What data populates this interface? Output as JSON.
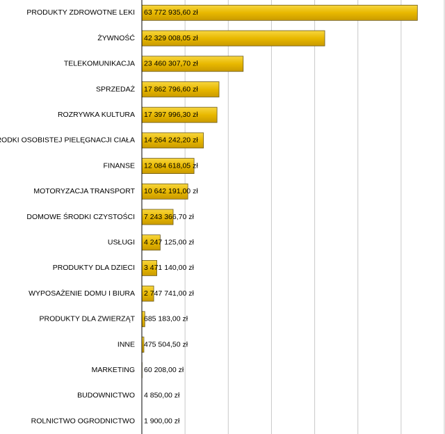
{
  "chart_data": {
    "type": "hbar",
    "categories": [
      "PRODUKTY ZDROWOTNE LEKI",
      "ŻYWNOŚĆ",
      "TELEKOMUNIKACJA",
      "SPRZEDAŻ",
      "ROZRYWKA KULTURA",
      "ŚRODKI OSOBISTEJ PIELĘGNACJI CIAŁA",
      "FINANSE",
      "MOTORYZACJA TRANSPORT",
      "DOMOWE ŚRODKI CZYSTOŚCI",
      "USŁUGI",
      "PRODUKTY DLA DZIECI",
      "WYPOSAŻENIE DOMU I BIURA",
      "PRODUKTY DLA ZWIERZĄT",
      "INNE",
      "MARKETING",
      "BUDOWNICTWO",
      "ROLNICTWO OGRODNICTWO"
    ],
    "values": [
      63772935.6,
      42329008.05,
      23460307.7,
      17862796.6,
      17397996.3,
      14264242.2,
      12084618.05,
      10642191.0,
      7243366.7,
      4247125.0,
      3471140.0,
      2747741.0,
      685183.0,
      475504.5,
      60208.0,
      4850.0,
      1900.0
    ],
    "value_labels": [
      "63 772 935,60 zł",
      "42 329 008,05 zł",
      "23 460 307,70 zł",
      "17 862 796,60 zł",
      "17 397 996,30 zł",
      "14 264 242,20 zł",
      "12 084 618,05 zł",
      "10 642 191,00 zł",
      "7 243 366,70 zł",
      "4 247 125,00 zł",
      "3 471 140,00 zł",
      "2 747 741,00 zł",
      "685 183,00 zł",
      "475 504,50 zł",
      "60 208,00 zł",
      "4 850,00 zł",
      "1 900,00 zł"
    ],
    "color": "#e8b800",
    "xlim": [
      0,
      70000000
    ],
    "xticks": [
      0,
      10000000,
      20000000,
      30000000,
      40000000,
      50000000,
      60000000,
      70000000
    ],
    "grid": true
  }
}
